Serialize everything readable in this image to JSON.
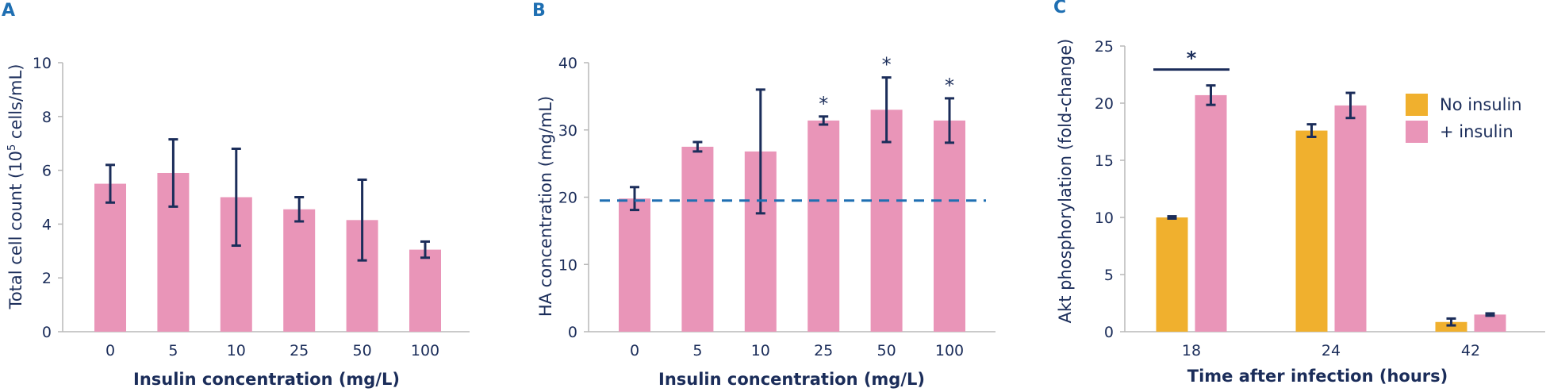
{
  "colors": {
    "pink": "#e995b8",
    "orange": "#f0b02e",
    "navy": "#1b2d5a",
    "blue_dash": "#1f6fb2",
    "letter": "#1f6fb2"
  },
  "chart_data": [
    {
      "panel": "A",
      "type": "bar",
      "categories": [
        "0",
        "5",
        "10",
        "25",
        "50",
        "100"
      ],
      "values": [
        5.5,
        5.9,
        5.0,
        4.55,
        4.15,
        3.05
      ],
      "errors": [
        0.7,
        1.25,
        1.8,
        0.45,
        1.5,
        0.3
      ],
      "ylim": [
        0,
        10
      ],
      "yticks": [
        "0",
        "2",
        "4",
        "6",
        "8",
        "10"
      ],
      "ylabel_main": "Total cell count (10",
      "ylabel_sup": "5",
      "ylabel_tail": " cells/mL)",
      "xlabel": "Insulin concentration (mg/L)"
    },
    {
      "panel": "B",
      "type": "bar",
      "categories": [
        "0",
        "5",
        "10",
        "25",
        "50",
        "100"
      ],
      "values": [
        19.8,
        27.5,
        26.8,
        31.4,
        33.0,
        31.4
      ],
      "errors": [
        1.7,
        0.7,
        9.2,
        0.6,
        4.8,
        3.3
      ],
      "significance": [
        "",
        "",
        "",
        "*",
        "*",
        "*"
      ],
      "reference_line": 19.5,
      "ylim": [
        0,
        40
      ],
      "yticks": [
        "0",
        "10",
        "20",
        "30",
        "40"
      ],
      "ylabel": "HA concentration (mg/mL)",
      "xlabel": "Insulin concentration (mg/L)"
    },
    {
      "panel": "C",
      "type": "bar",
      "categories": [
        "18",
        "24",
        "42"
      ],
      "series": [
        {
          "name": "No insulin",
          "values": [
            10.0,
            17.6,
            0.85
          ],
          "errors": [
            0.1,
            0.55,
            0.3
          ]
        },
        {
          "name": "+ insulin",
          "values": [
            20.7,
            19.8,
            1.5
          ],
          "errors": [
            0.85,
            1.1,
            0.1
          ]
        }
      ],
      "significance": {
        "category": "18",
        "label": "*"
      },
      "ylim": [
        0,
        25
      ],
      "yticks": [
        "0",
        "5",
        "10",
        "15",
        "20",
        "25"
      ],
      "ylabel": "Akt phosphorylation (fold-change)",
      "xlabel": "Time after infection (hours)",
      "legend": "right"
    }
  ]
}
